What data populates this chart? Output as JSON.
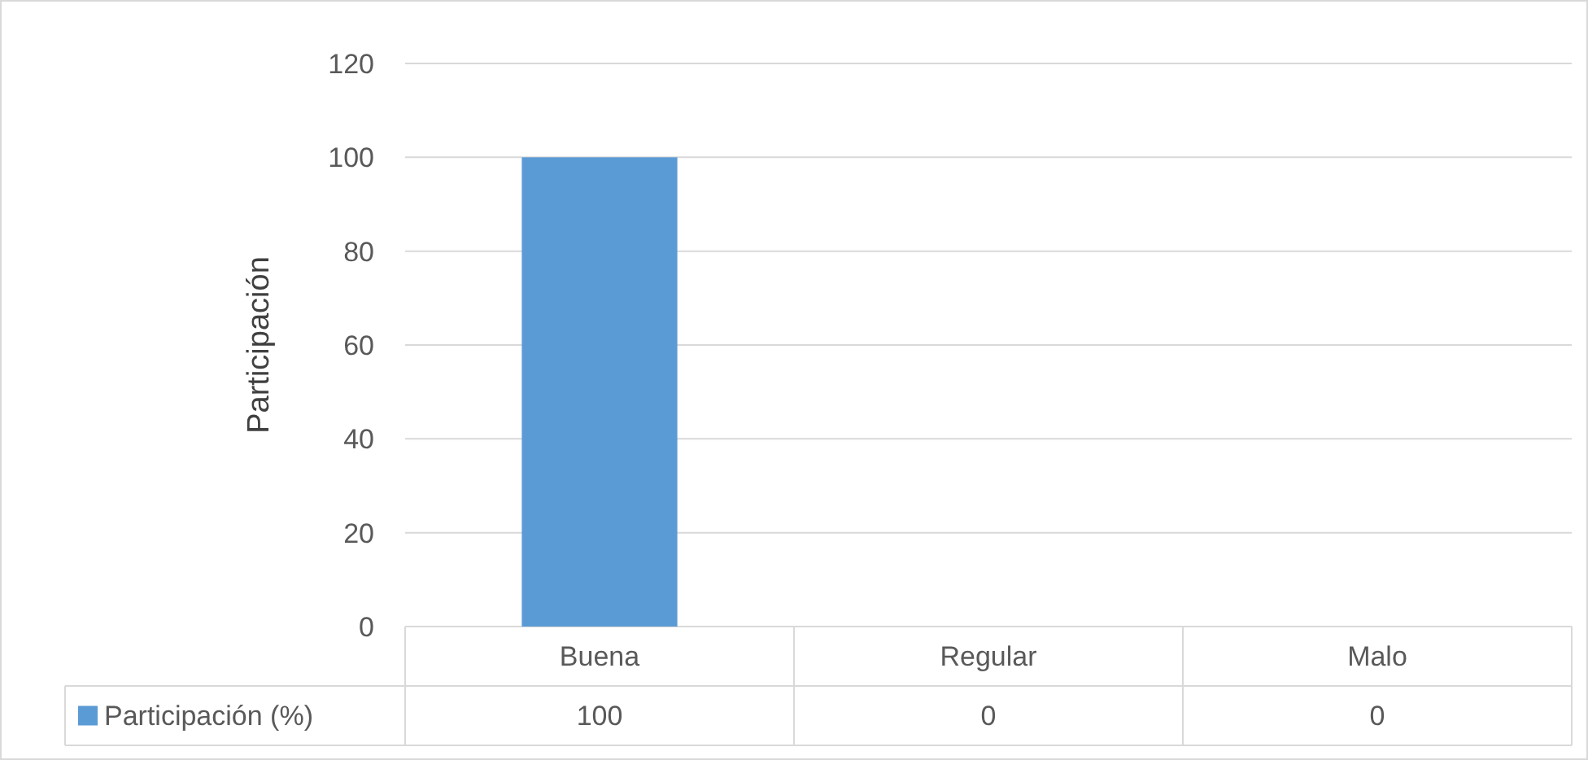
{
  "chart_data": {
    "type": "bar",
    "ylabel": "Participación",
    "categories": [
      "Buena",
      "Regular",
      "Malo"
    ],
    "series": [
      {
        "name": "Participación (%)",
        "color": "#5b9bd5",
        "values": [
          100,
          0,
          0
        ]
      }
    ],
    "ylim": [
      0,
      120
    ],
    "yticks": [
      0,
      20,
      40,
      60,
      80,
      100,
      120
    ],
    "grid": "y",
    "legend": "bottom",
    "data_labels": true
  }
}
